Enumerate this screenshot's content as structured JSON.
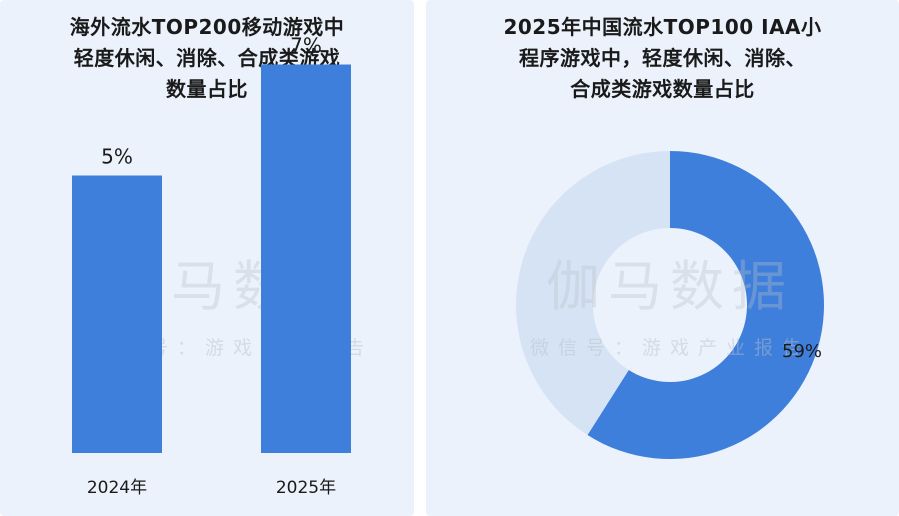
{
  "colors": {
    "background": "#ecf2fb",
    "bar": "#3f7fdc",
    "donut_main": "#3f7fdc",
    "donut_rest": "#d6e3f5",
    "watermark": "#b9bfc8"
  },
  "watermark": {
    "main": "伽马数据",
    "sub": "微信号：游戏产业报告"
  },
  "chart_data": [
    {
      "type": "bar",
      "title_lines": [
        "海外流水TOP200移动游戏中",
        "轻度休闲、消除、合成类游戏",
        "数量占比"
      ],
      "categories": [
        "2024年",
        "2025年"
      ],
      "values": [
        5,
        7
      ],
      "value_labels": [
        "5%",
        "7%"
      ],
      "xlabel": "",
      "ylabel": "",
      "grid": false
    },
    {
      "type": "pie",
      "style": "donut",
      "title_lines": [
        "2025年中国流水TOP100 IAA小",
        "程序游戏中，轻度休闲、消除、",
        "合成类游戏数量占比"
      ],
      "slices": [
        {
          "label": "59%",
          "value": 59
        },
        {
          "label": "",
          "value": 41
        }
      ]
    }
  ]
}
